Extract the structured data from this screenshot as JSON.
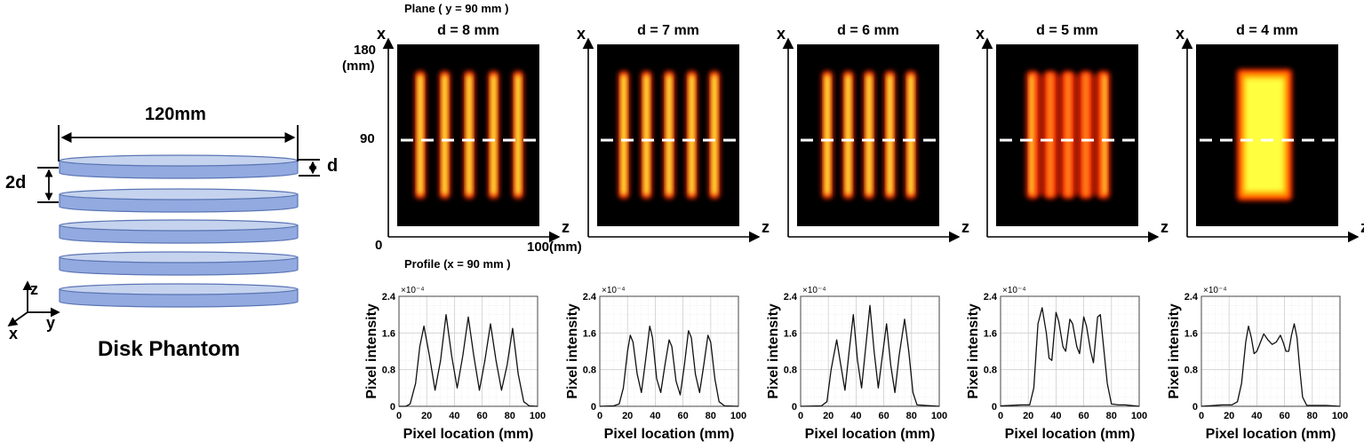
{
  "phantom": {
    "title": "Disk Phantom",
    "width_label": "120mm",
    "spacing_label": "2d",
    "thickness_label": "d",
    "disk_count": 5,
    "disk_top_color": "#c5d3ee",
    "disk_side_color": "#92aadf",
    "disk_edge_color": "#5a75b5",
    "axes": {
      "z": "z",
      "y": "y",
      "x": "x"
    }
  },
  "images": {
    "section_label": "Plane ( y = 90 mm )",
    "x_axis_label": "x",
    "z_axis_label": "z",
    "x_ticks": {
      "top": "180",
      "unit": "(mm)",
      "mid": "90",
      "origin": "0"
    },
    "z_end_label": "100(mm)",
    "colormap": [
      "#000000",
      "#7a0000",
      "#ff2a00",
      "#ffa000",
      "#ffff40"
    ],
    "dashed_line_color": "#ffffff",
    "panels": [
      {
        "title": "d = 8 mm",
        "stripe_count": 5,
        "merged": false
      },
      {
        "title": "d = 7 mm",
        "stripe_count": 5,
        "merged": false
      },
      {
        "title": "d = 6 mm",
        "stripe_count": 5,
        "merged": false
      },
      {
        "title": "d = 5 mm",
        "stripe_count": 5,
        "merged": false
      },
      {
        "title": "d = 4 mm",
        "stripe_count": 5,
        "merged": true
      }
    ]
  },
  "profiles": {
    "section_label": "Profile (x = 90 mm )",
    "exponent_label": "×10⁻⁴"
  },
  "chart_data": [
    {
      "type": "line",
      "title": "d = 8 mm",
      "xlabel": "Pixel location (mm)",
      "ylabel": "Pixel intensity",
      "y_scale_note": "×10^-4",
      "xlim": [
        0,
        100
      ],
      "ylim": [
        0,
        2.4
      ],
      "xticks": [
        0,
        20,
        40,
        60,
        80,
        100
      ],
      "yticks": [
        0,
        0.8,
        1.6,
        2.4
      ],
      "grid": true,
      "x": [
        0,
        5,
        8,
        12,
        15,
        18,
        22,
        26,
        30,
        34,
        38,
        42,
        46,
        50,
        54,
        58,
        62,
        66,
        70,
        74,
        78,
        82,
        86,
        90,
        94,
        100
      ],
      "y": [
        0,
        0,
        0.05,
        0.5,
        1.3,
        1.75,
        1.1,
        0.35,
        1.0,
        2.0,
        1.1,
        0.4,
        1.1,
        1.95,
        1.1,
        0.35,
        1.0,
        1.8,
        1.0,
        0.35,
        0.9,
        1.7,
        0.7,
        0.1,
        0.01,
        0
      ]
    },
    {
      "type": "line",
      "title": "d = 7 mm",
      "xlabel": "Pixel location (mm)",
      "ylabel": "Pixel intensity",
      "y_scale_note": "×10^-4",
      "xlim": [
        0,
        100
      ],
      "ylim": [
        0,
        2.4
      ],
      "xticks": [
        0,
        20,
        40,
        60,
        80,
        100
      ],
      "yticks": [
        0,
        0.8,
        1.6,
        2.4
      ],
      "grid": true,
      "x": [
        0,
        10,
        14,
        17,
        20,
        22,
        24,
        27,
        30,
        33,
        36,
        38,
        41,
        44,
        47,
        50,
        52,
        55,
        58,
        61,
        64,
        66,
        69,
        72,
        75,
        78,
        80,
        83,
        86,
        90,
        100
      ],
      "y": [
        0,
        0.01,
        0.05,
        0.4,
        1.2,
        1.55,
        1.4,
        0.7,
        0.3,
        1.0,
        1.75,
        1.5,
        0.6,
        0.3,
        0.9,
        1.45,
        1.3,
        0.55,
        0.25,
        0.9,
        1.65,
        1.5,
        0.7,
        0.3,
        0.9,
        1.55,
        1.4,
        0.6,
        0.1,
        0.01,
        0
      ]
    },
    {
      "type": "line",
      "title": "d = 6 mm",
      "xlabel": "Pixel location (mm)",
      "ylabel": "Pixel intensity",
      "y_scale_note": "×10^-4",
      "xlim": [
        0,
        100
      ],
      "ylim": [
        0,
        2.4
      ],
      "xticks": [
        0,
        20,
        40,
        60,
        80,
        100
      ],
      "yticks": [
        0,
        0.8,
        1.6,
        2.4
      ],
      "grid": true,
      "x": [
        0,
        15,
        19,
        22,
        26,
        29,
        32,
        35,
        38,
        41,
        44,
        47,
        50,
        53,
        56,
        59,
        62,
        65,
        68,
        71,
        75,
        78,
        81,
        84,
        100
      ],
      "y": [
        0,
        0.01,
        0.1,
        0.8,
        1.45,
        0.9,
        0.35,
        1.2,
        2.0,
        1.0,
        0.4,
        1.3,
        2.2,
        1.2,
        0.4,
        1.1,
        1.8,
        0.9,
        0.3,
        1.1,
        1.9,
        1.2,
        0.3,
        0.03,
        0
      ]
    },
    {
      "type": "line",
      "title": "d = 5 mm",
      "xlabel": "Pixel location (mm)",
      "ylabel": "Pixel intensity",
      "y_scale_note": "×10^-4",
      "xlim": [
        0,
        100
      ],
      "ylim": [
        0,
        2.4
      ],
      "xticks": [
        0,
        20,
        40,
        60,
        80,
        100
      ],
      "yticks": [
        0,
        0.8,
        1.6,
        2.4
      ],
      "grid": true,
      "x": [
        0,
        15,
        21,
        24,
        27,
        30,
        33,
        35,
        37,
        40,
        42,
        45,
        47,
        50,
        52,
        55,
        57,
        60,
        62,
        65,
        67,
        70,
        72,
        74,
        77,
        80,
        85,
        90,
        100
      ],
      "y": [
        0.01,
        0.03,
        0.03,
        0.4,
        1.8,
        2.15,
        1.6,
        1.05,
        1.0,
        2.05,
        1.85,
        1.3,
        1.2,
        1.9,
        1.8,
        1.3,
        1.15,
        1.95,
        1.75,
        1.2,
        0.95,
        1.95,
        2.0,
        1.4,
        0.5,
        0.05,
        0.03,
        0.03,
        0
      ]
    },
    {
      "type": "line",
      "title": "d = 4 mm",
      "xlabel": "Pixel location (mm)",
      "ylabel": "Pixel intensity",
      "y_scale_note": "×10^-4",
      "xlim": [
        0,
        100
      ],
      "ylim": [
        0,
        2.4
      ],
      "xticks": [
        0,
        20,
        40,
        60,
        80,
        100
      ],
      "yticks": [
        0,
        0.8,
        1.6,
        2.4
      ],
      "grid": true,
      "x": [
        0,
        15,
        22,
        26,
        29,
        32,
        34,
        36,
        38,
        40,
        42,
        45,
        48,
        51,
        54,
        57,
        59,
        61,
        63,
        65,
        67,
        69,
        71,
        73,
        76,
        80,
        90,
        100
      ],
      "y": [
        0,
        0.03,
        0.03,
        0.1,
        0.5,
        1.4,
        1.75,
        1.5,
        1.15,
        1.2,
        1.35,
        1.58,
        1.45,
        1.35,
        1.4,
        1.55,
        1.4,
        1.2,
        1.2,
        1.55,
        1.8,
        1.5,
        0.8,
        0.2,
        0.02,
        0.02,
        0.02,
        0
      ]
    }
  ]
}
